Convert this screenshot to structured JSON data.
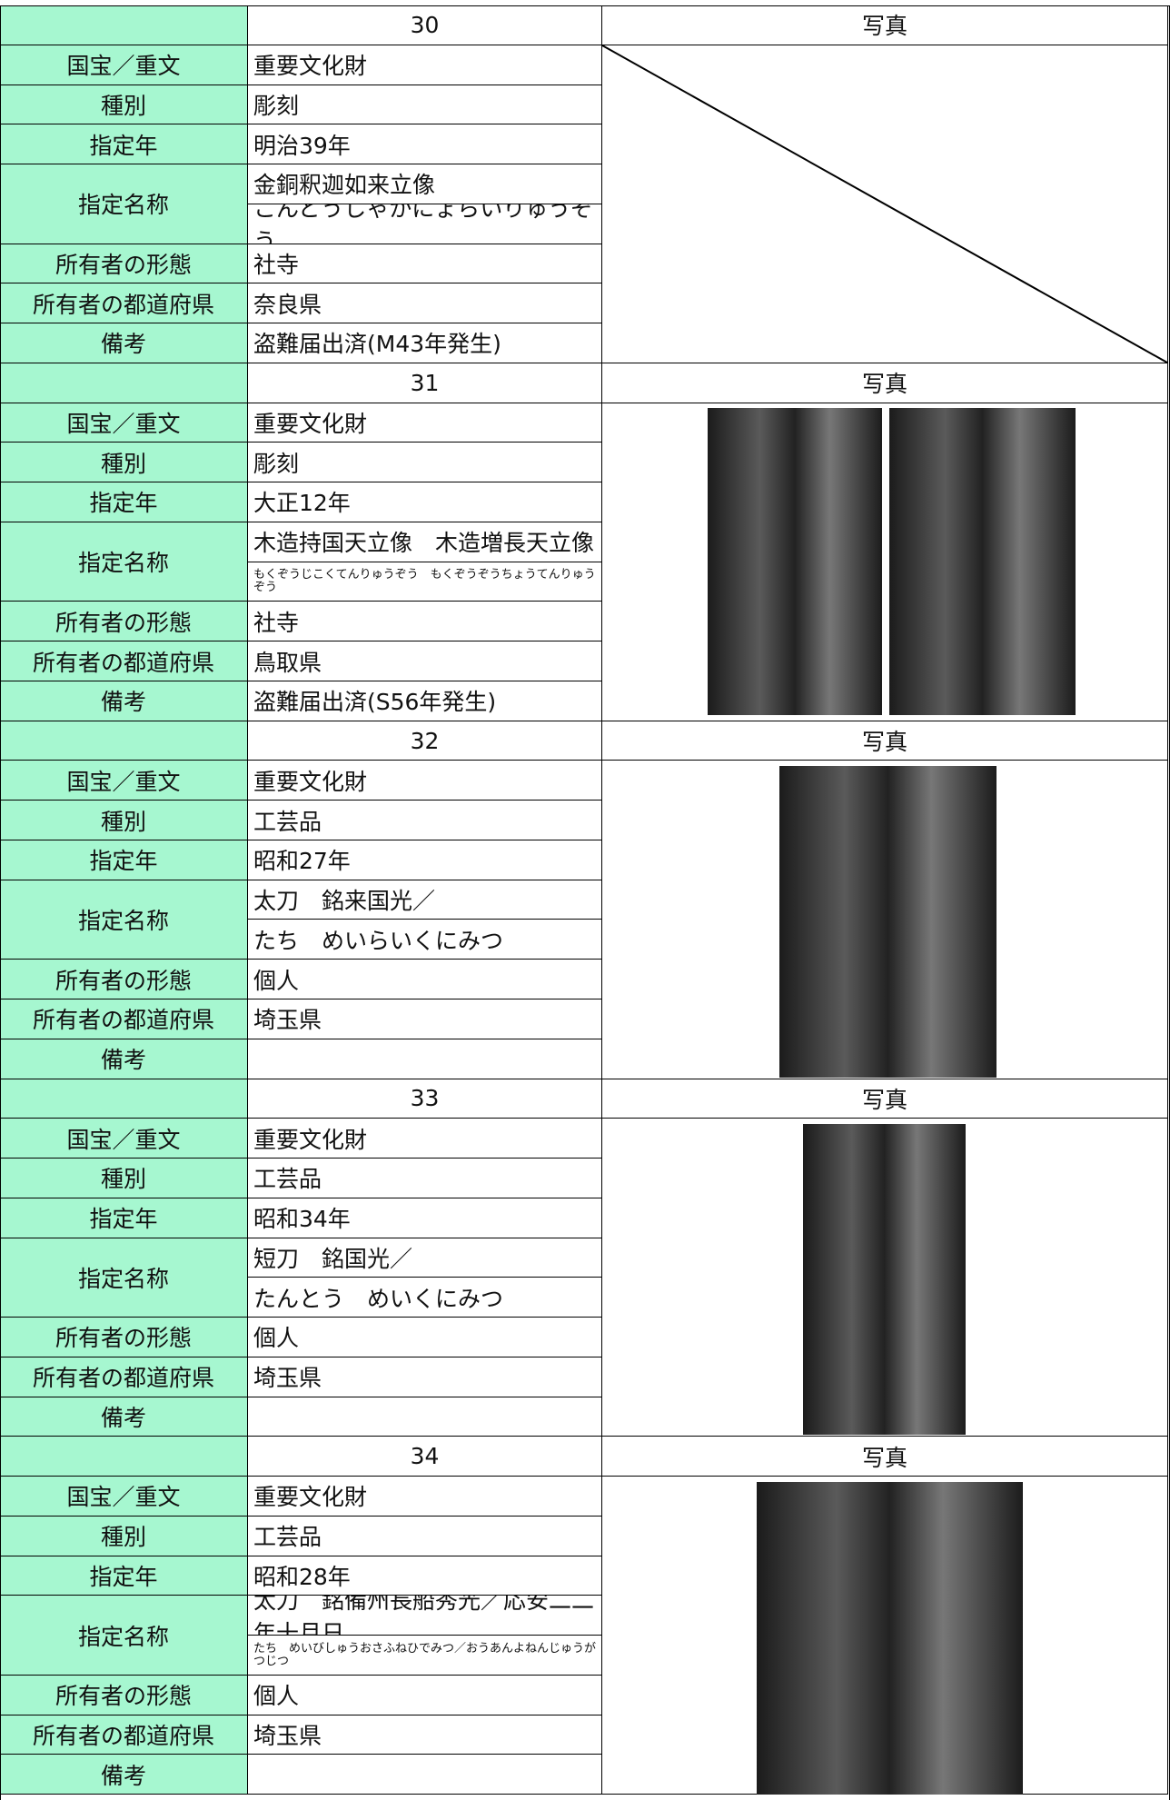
{
  "records": [
    {
      "number": "30",
      "photo_label": "写真",
      "fields": [
        {
          "label": "国宝／重文",
          "values": [
            "重要文化財"
          ]
        },
        {
          "label": "種別",
          "values": [
            "彫刻"
          ]
        },
        {
          "label": "指定年",
          "values": [
            "明治39年"
          ]
        },
        {
          "label": "指定名称",
          "values": [
            "金銅釈迦如来立像",
            "こんどうしゃかにょらいりゅうぞう"
          ]
        },
        {
          "label": "所有者の形態",
          "values": [
            "社寺"
          ]
        },
        {
          "label": "所有者の都道府県",
          "values": [
            "奈良県"
          ]
        },
        {
          "label": "備考",
          "values": [
            "盗難届出済(M43年発生)"
          ]
        }
      ]
    },
    {
      "number": "31",
      "photo_label": "写真",
      "fields": [
        {
          "label": "国宝／重文",
          "values": [
            "重要文化財"
          ]
        },
        {
          "label": "種別",
          "values": [
            "彫刻"
          ]
        },
        {
          "label": "指定年",
          "values": [
            "大正12年"
          ]
        },
        {
          "label": "指定名称",
          "values": [
            "木造持国天立像　木造増長天立像",
            "もくぞうじこくてんりゅうぞう　もくぞうぞうちょうてんりゅうぞう"
          ]
        },
        {
          "label": "所有者の形態",
          "values": [
            "社寺"
          ]
        },
        {
          "label": "所有者の都道府県",
          "values": [
            "鳥取県"
          ]
        },
        {
          "label": "備考",
          "values": [
            "盗難届出済(S56年発生)"
          ]
        }
      ]
    },
    {
      "number": "32",
      "photo_label": "写真",
      "fields": [
        {
          "label": "国宝／重文",
          "values": [
            "重要文化財"
          ]
        },
        {
          "label": "種別",
          "values": [
            "工芸品"
          ]
        },
        {
          "label": "指定年",
          "values": [
            "昭和27年"
          ]
        },
        {
          "label": "指定名称",
          "values": [
            "太刀　銘来国光／",
            "たち　めいらいくにみつ"
          ]
        },
        {
          "label": "所有者の形態",
          "values": [
            "個人"
          ]
        },
        {
          "label": "所有者の都道府県",
          "values": [
            "埼玉県"
          ]
        },
        {
          "label": "備考",
          "values": []
        }
      ]
    },
    {
      "number": "33",
      "photo_label": "写真",
      "fields": [
        {
          "label": "国宝／重文",
          "values": [
            "重要文化財"
          ]
        },
        {
          "label": "種別",
          "values": [
            "工芸品"
          ]
        },
        {
          "label": "指定年",
          "values": [
            "昭和34年"
          ]
        },
        {
          "label": "指定名称",
          "values": [
            "短刀　銘国光／",
            "たんとう　めいくにみつ"
          ]
        },
        {
          "label": "所有者の形態",
          "values": [
            "個人"
          ]
        },
        {
          "label": "所有者の都道府県",
          "values": [
            "埼玉県"
          ]
        },
        {
          "label": "備考",
          "values": []
        }
      ]
    },
    {
      "number": "34",
      "photo_label": "写真",
      "fields": [
        {
          "label": "国宝／重文",
          "values": [
            "重要文化財"
          ]
        },
        {
          "label": "種別",
          "values": [
            "工芸品"
          ]
        },
        {
          "label": "指定年",
          "values": [
            "昭和28年"
          ]
        },
        {
          "label": "指定名称",
          "values": [
            "太刀　銘備州長船秀光／応安二二年十月日",
            "たち　めいびしゅうおさふねひでみつ／おうあんよねんじゅうがつじつ"
          ]
        },
        {
          "label": "所有者の形態",
          "values": [
            "個人"
          ]
        },
        {
          "label": "所有者の都道府県",
          "values": [
            "埼玉県"
          ]
        },
        {
          "label": "備考",
          "values": []
        }
      ]
    }
  ]
}
